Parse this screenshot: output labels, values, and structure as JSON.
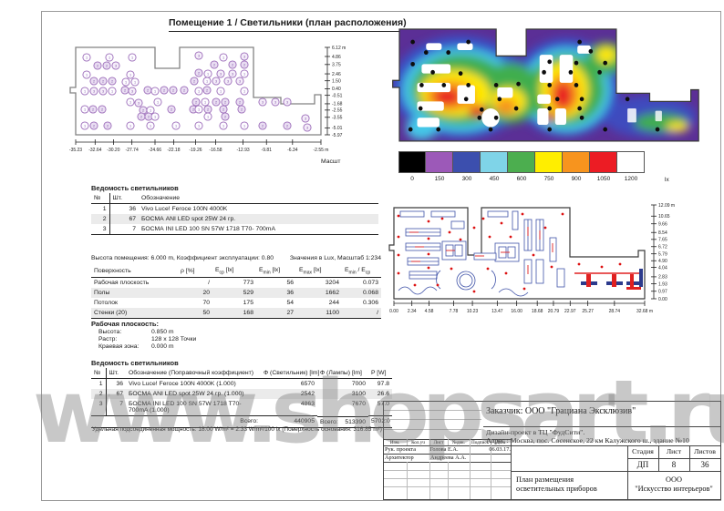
{
  "page": {
    "title": "Помещение 1 / Светильники (план расположения)",
    "scale_label": "Масшт",
    "watermark": "www.shopsart.ru"
  },
  "plan_left": {
    "right_axis": [
      "6.12 m",
      "4.86",
      "3.75",
      "2.46",
      "1.50",
      "0.40",
      "-0.51",
      "-1.68",
      "-2.55",
      "-3.55",
      "-5.01",
      "-5.97"
    ],
    "bottom_axis": [
      "-35.23",
      "-32.64",
      "-30.20",
      "-27.74",
      "-24.66",
      "-22.18",
      "-19.26",
      "-16.58",
      "-12.93",
      "-9.81",
      "-6.34",
      "-2.55 m"
    ],
    "luminaires": [
      [
        12,
        11,
        1
      ],
      [
        37,
        11,
        1
      ],
      [
        62,
        11,
        1
      ],
      [
        135,
        9,
        3
      ],
      [
        162,
        11,
        1
      ],
      [
        185,
        10,
        3
      ],
      [
        24,
        20,
        2
      ],
      [
        34,
        20,
        2
      ],
      [
        44,
        20,
        3
      ],
      [
        152,
        19,
        2
      ],
      [
        172,
        19,
        2
      ],
      [
        185,
        19,
        2
      ],
      [
        12,
        30,
        1
      ],
      [
        60,
        30,
        1
      ],
      [
        135,
        28,
        2
      ],
      [
        145,
        29,
        1
      ],
      [
        159,
        29,
        3
      ],
      [
        172,
        29,
        3
      ],
      [
        185,
        29,
        1
      ],
      [
        20,
        37,
        2
      ],
      [
        30,
        37,
        2
      ],
      [
        40,
        37,
        2
      ],
      [
        55,
        38,
        1
      ],
      [
        65,
        38,
        1
      ],
      [
        130,
        37,
        2
      ],
      [
        144,
        37,
        1
      ],
      [
        154,
        37,
        3
      ],
      [
        167,
        37,
        3
      ],
      [
        180,
        37,
        3
      ],
      [
        10,
        48,
        1
      ],
      [
        20,
        48,
        3
      ],
      [
        30,
        48,
        3
      ],
      [
        40,
        48,
        1
      ],
      [
        54,
        47,
        2
      ],
      [
        62,
        48,
        3
      ],
      [
        79,
        47,
        2
      ],
      [
        87,
        48,
        1
      ],
      [
        97,
        47,
        2
      ],
      [
        107,
        47,
        2
      ],
      [
        119,
        47,
        2
      ],
      [
        135,
        48,
        1
      ],
      [
        144,
        47,
        2
      ],
      [
        159,
        48,
        1
      ],
      [
        185,
        48,
        1
      ],
      [
        60,
        60,
        1
      ],
      [
        69,
        61,
        3
      ],
      [
        90,
        60,
        1
      ],
      [
        132,
        60,
        2
      ],
      [
        142,
        60,
        1
      ],
      [
        154,
        60,
        2
      ],
      [
        164,
        60,
        2
      ],
      [
        180,
        60,
        2
      ],
      [
        205,
        60,
        3
      ],
      [
        219,
        60,
        3
      ],
      [
        232,
        60,
        3
      ],
      [
        10,
        68,
        1
      ],
      [
        19,
        68,
        2
      ],
      [
        29,
        68,
        2
      ],
      [
        74,
        69,
        2
      ],
      [
        82,
        69,
        1
      ],
      [
        105,
        68,
        2
      ],
      [
        129,
        68,
        2
      ],
      [
        135,
        68,
        1
      ],
      [
        145,
        68,
        2
      ],
      [
        162,
        68,
        2
      ],
      [
        182,
        68,
        2
      ],
      [
        72,
        76,
        2
      ],
      [
        80,
        76,
        2
      ],
      [
        87,
        76,
        1
      ],
      [
        145,
        76,
        1
      ],
      [
        164,
        76,
        2
      ],
      [
        252,
        78,
        3
      ],
      [
        10,
        86,
        1
      ],
      [
        20,
        86,
        2
      ],
      [
        35,
        86,
        2
      ],
      [
        60,
        86,
        1
      ],
      [
        82,
        86,
        1
      ],
      [
        110,
        86,
        1
      ],
      [
        135,
        86,
        1
      ],
      [
        162,
        86,
        1
      ],
      [
        185,
        86,
        1
      ],
      [
        205,
        86,
        2
      ],
      [
        232,
        86,
        2
      ],
      [
        254,
        88,
        3
      ]
    ]
  },
  "falsecolor": {
    "legend_values": [
      "0",
      "150",
      "300",
      "450",
      "600",
      "750",
      "900",
      "1050",
      "1200"
    ],
    "legend_unit": "lx",
    "legend_colors": [
      "#000000",
      "#9c59b8",
      "#3c4fae",
      "#7fd4e8",
      "#4cae4f",
      "#ffee00",
      "#f7941e",
      "#ec1c24",
      "#ffffff"
    ]
  },
  "tables": {
    "luminaire_schedule": {
      "heading": "Ведомость светильников",
      "columns": [
        "№",
        "Шт.",
        "Обозначение"
      ],
      "rows": [
        [
          "1",
          "36",
          "Vivo Luce! Feroce 100N 4000K"
        ],
        [
          "2",
          "67",
          "БОСМА ANI LED spot 25W 24 гр."
        ],
        [
          "3",
          "7",
          "БОСМА INI LED 100 SN 57W 1718 T70- 700mA"
        ]
      ]
    },
    "room_info_left": "Высота помещения: 6.000 m, Коэффициент эксплуатации: 0.80",
    "room_info_right": "Значения в Lux, Масштаб 1:234",
    "surfaces": {
      "columns": [
        {
          "t": "Поверхность"
        },
        {
          "t": "ρ [%]"
        },
        {
          "t": "E",
          "s": "ср",
          "a": " [lx]"
        },
        {
          "t": "E",
          "s": "min",
          "a": " [lx]"
        },
        {
          "t": "E",
          "s": "max",
          "a": " [lx]"
        },
        {
          "t": "E",
          "s": "min",
          "a": " / E",
          "s2": "ср"
        }
      ],
      "rows": [
        [
          "Рабочая плоскость",
          "/",
          "773",
          "56",
          "3204",
          "0.073"
        ],
        [
          "Полы",
          "20",
          "529",
          "36",
          "1662",
          "0.068"
        ],
        [
          "Потолок",
          "70",
          "175",
          "54",
          "244",
          "0.306"
        ],
        [
          "Стенки (20)",
          "50",
          "168",
          "27",
          "1100",
          "/"
        ]
      ]
    },
    "work_plane": {
      "heading": "Рабочая плоскость:",
      "rows": [
        [
          "Высота:",
          "0.850 m"
        ],
        [
          "Растр:",
          "128 x 128 Точки"
        ],
        [
          "Краевая зона:",
          "0.000 m"
        ]
      ]
    },
    "luminaire_schedule2": {
      "heading": "Ведомость светильников",
      "columns": [
        "№",
        "Шт.",
        "Обозначение (Поправочный коэффициент)",
        "Ф (Светильник) [lm]",
        "Ф (Лампы) [lm]",
        "P [W]"
      ],
      "rows": [
        [
          "1",
          "36",
          "Vivo Luce! Feroce 100N 4000K (1.000)",
          "6570",
          "7000",
          "97.8"
        ],
        [
          "2",
          "67",
          "БОСМА ANI LED spot 25W 24 гр. (1.000)",
          "2542",
          "3100",
          "26.6"
        ],
        [
          "3",
          "7",
          "БОСМА INI LED 100 SN 57W 1718 T70- 700mA (1.000)",
          "4863",
          "7670",
          "57.0"
        ]
      ],
      "total_label": "Всего:",
      "totals": [
        "440905",
        "513390",
        "5702.0"
      ]
    },
    "specific_power": "Удельная подсоединенная мощность: 18.00 W/m² = 2.33 W/m²/100 lx (Поверхность основания: 316.85 m²)"
  },
  "plan_right": {
    "right_axis": [
      "12.09 m",
      "10.65",
      "9.66",
      "8.54",
      "7.65",
      "6.72",
      "5.79",
      "4.90",
      "4.04",
      "2.83",
      "1.93",
      "0.97",
      "0.00"
    ],
    "bottom_axis": [
      "0.00",
      "2.34",
      "4.58",
      "7.78",
      "10.23",
      "13.47",
      "16.00",
      "18.68",
      "20.79",
      "22.97",
      "25.27",
      "28.74",
      "32.68 m"
    ]
  },
  "titleblock": {
    "customer": "Заказчик:  ООО \"Грациана Эксклюзив\"",
    "project": "Дизайн-проект в  ТЦ \"ФудСити\".",
    "address": "Адрес : Москва, пос. Сосенское, 22 км Калужского ш., здание №10",
    "rev_header": [
      "Изм.",
      "Кол.уч",
      "Лист",
      "№док.",
      "Подпись",
      "Дата"
    ],
    "roles": [
      {
        "role": "Рук. проекта",
        "name": "Голова Е.А.",
        "date": "06.03.17."
      },
      {
        "role": "Архитектор",
        "name": "Андреева А.А.",
        "date": ""
      }
    ],
    "stage_header": [
      "Стадия",
      "Лист",
      "Листов"
    ],
    "stage_values": [
      "ДП",
      "8",
      "36"
    ],
    "drawing_title": "План размещения осветительных приборов",
    "company_line1": "ООО",
    "company_line2": "\"Искусство интерьеров\""
  }
}
